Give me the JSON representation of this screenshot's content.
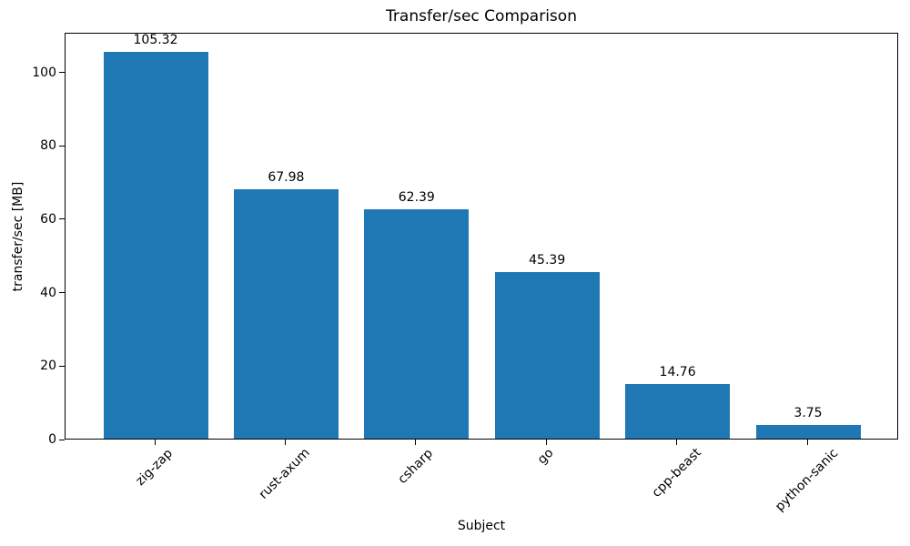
{
  "figure": {
    "background": "#ffffff"
  },
  "chart_data": {
    "type": "bar",
    "title": "Transfer/sec Comparison",
    "xlabel": "Subject",
    "ylabel": "transfer/sec [MB]",
    "categories": [
      "zig-zap",
      "rust-axum",
      "csharp",
      "go",
      "cpp-beast",
      "python-sanic"
    ],
    "values": [
      105.32,
      67.98,
      62.39,
      45.39,
      14.76,
      3.75
    ],
    "value_labels": [
      "105.32",
      "67.98",
      "62.39",
      "45.39",
      "14.76",
      "3.75"
    ],
    "bar_color": "#1f77b4",
    "axis_color": "#000000",
    "text_color": "#000000",
    "ylim": [
      0,
      110.8
    ],
    "yticks": [
      0,
      20,
      40,
      60,
      80,
      100
    ],
    "x_tick_rotation": 45,
    "grid": false,
    "legend": null
  }
}
